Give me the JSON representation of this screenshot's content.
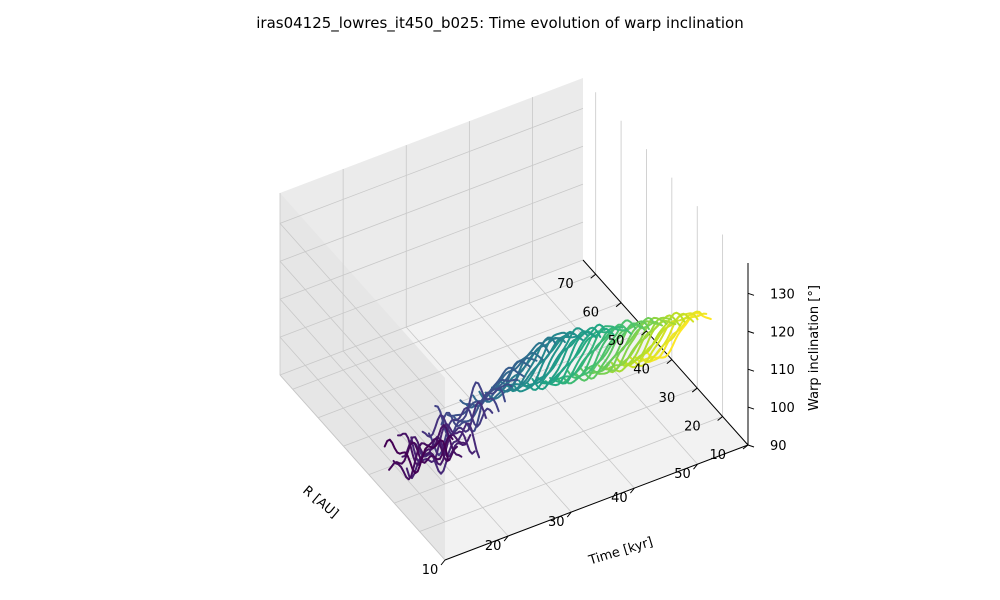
{
  "chart_data": {
    "type": "line3d",
    "title": "iras04125_lowres_it450_b025: Time evolution of warp inclination",
    "xlabel": "R [AU]",
    "ylabel": "Time [kyr]",
    "zlabel": "Warp inclination [°]",
    "xlim": [
      10,
      75
    ],
    "ylim": [
      10,
      58
    ],
    "zlim": [
      90,
      138
    ],
    "xticks": [
      "10",
      "20",
      "30",
      "40",
      "50",
      "60",
      "70"
    ],
    "yticks": [
      "10",
      "20",
      "30",
      "40",
      "50"
    ],
    "zticks": [
      "90",
      "100",
      "110",
      "120",
      "130"
    ],
    "colormap": "viridis",
    "grid": true,
    "r_range": [
      10,
      35
    ],
    "times": [
      10.5,
      11.2,
      11.9,
      12.6,
      13.3,
      14.0,
      14.7,
      15.4,
      16.5,
      17.5,
      18.5,
      19.5,
      20.5,
      21.5,
      22.5,
      23.5,
      24.5,
      25.5,
      26.5,
      27.5,
      28.3,
      29.0,
      29.7,
      30.4,
      31.1,
      31.8,
      32.5,
      33.2,
      33.9,
      34.6,
      35.3,
      36.0,
      36.7,
      37.4,
      38.1,
      38.8,
      39.5,
      40.2,
      40.9,
      41.6,
      42.3,
      43.0,
      43.7,
      44.4,
      45.1,
      45.8,
      46.5,
      47.2,
      47.9,
      48.6,
      49.3,
      50.0,
      50.7,
      51.4,
      52.1
    ],
    "inclination_inner": [
      116,
      117,
      118,
      117,
      116,
      118,
      119,
      117,
      122,
      124,
      127,
      125,
      128,
      130,
      131,
      132,
      133,
      134,
      135,
      135.5,
      136,
      136,
      136,
      135.5,
      135.5,
      135,
      135,
      134.5,
      134.5,
      134,
      134,
      133.5,
      133,
      133,
      132.5,
      132.5,
      132,
      132,
      131.5,
      131.5,
      131,
      131,
      130.5,
      130.5,
      130,
      130,
      129.5,
      129.5,
      129,
      129,
      128.5,
      128.5,
      128,
      128,
      127.5
    ],
    "inclination_outer": [
      100,
      98,
      97,
      101,
      99,
      96,
      98,
      95,
      102,
      100,
      103,
      101,
      104,
      102,
      105,
      104,
      106,
      105,
      104,
      106,
      106,
      105.5,
      105,
      104.5,
      104,
      104,
      103.5,
      103.5,
      103,
      103,
      102.5,
      102.5,
      102,
      102,
      102,
      101.5,
      101.5,
      101.5,
      101,
      101,
      101,
      100.5,
      100.5,
      100.5,
      100,
      100,
      100,
      100,
      99.5,
      99.5,
      99.5,
      99,
      99,
      99,
      99
    ]
  }
}
